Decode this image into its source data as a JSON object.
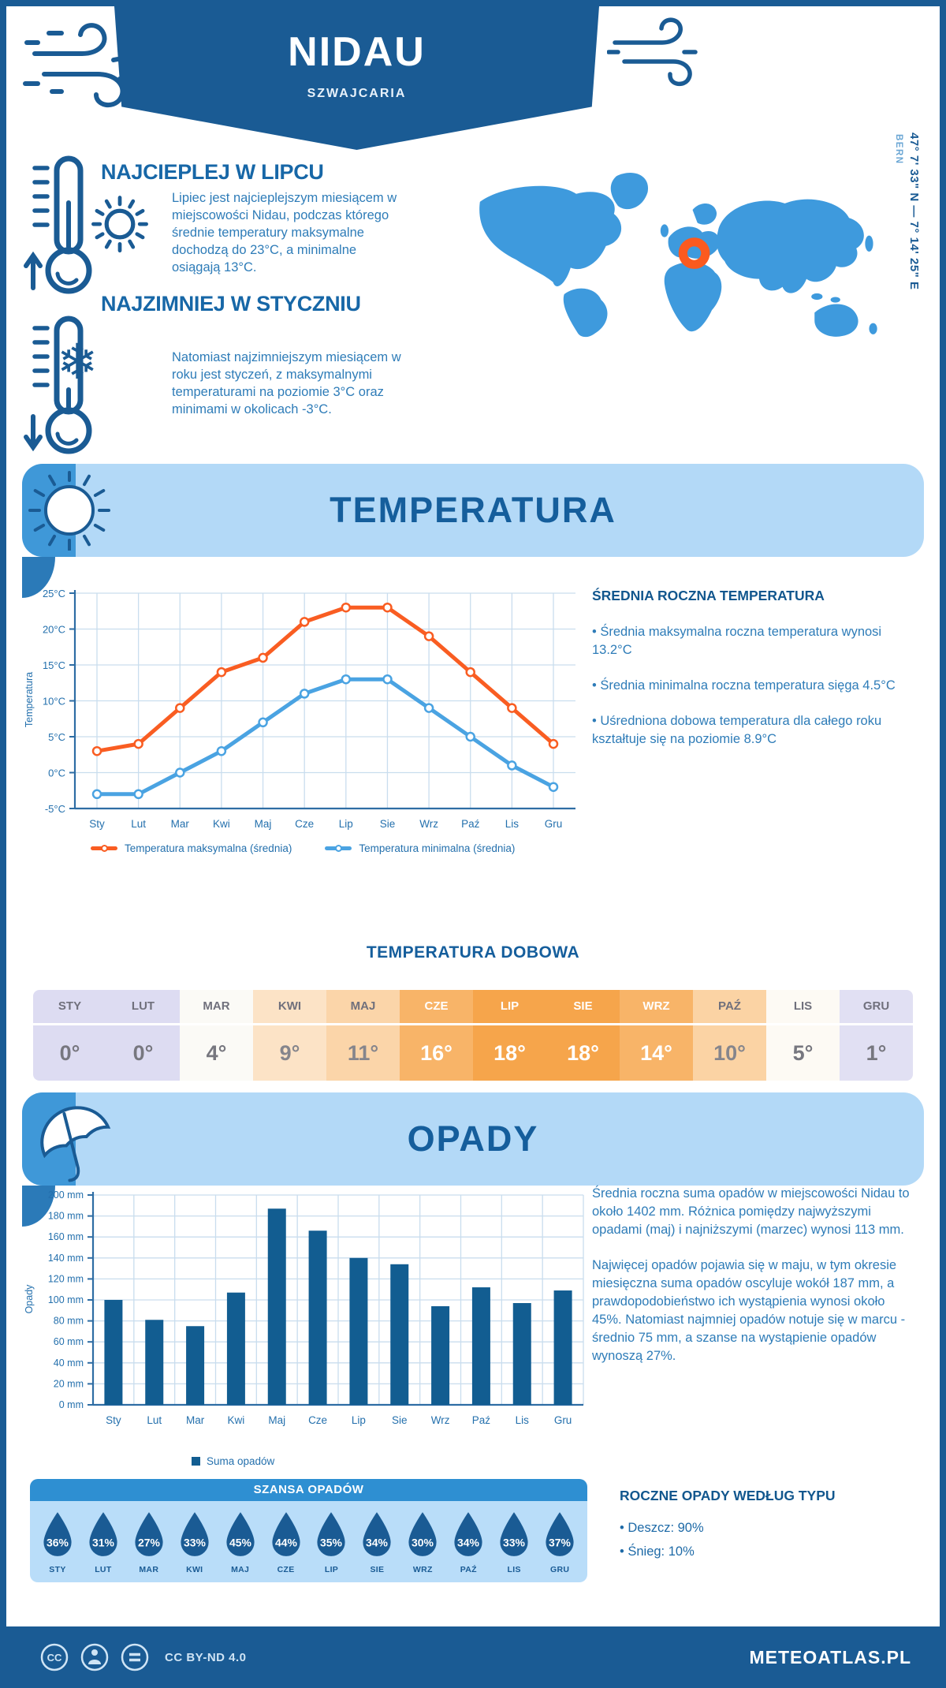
{
  "header": {
    "city": "NIDAU",
    "country": "SZWAJCARIA",
    "coordinates": "47° 7' 33\" N — 7° 14' 25\" E",
    "capital": "BERN"
  },
  "warmest": {
    "title": "NAJCIEPLEJ W LIPCU",
    "text": "Lipiec jest najcieplejszym miesiącem w miejscowości Nidau, podczas którego średnie temperatury maksymalne dochodzą do 23°C, a minimalne osiągają 13°C."
  },
  "coldest": {
    "title": "NAJZIMNIEJ W STYCZNIU",
    "text": "Natomiast najzimniejszym miesiącem w roku jest styczeń, z maksymalnymi temperaturami na poziomie 3°C oraz minimami w okolicach -3°C."
  },
  "icons": {
    "snowflake": "❄"
  },
  "colors": {
    "primary_dark": "#1a5b94",
    "accent_medium": "#3f98d8",
    "banner_light": "#b3d9f7",
    "map_blue": "#3e9add",
    "marker_orange": "#fb5a1f"
  },
  "temperature_section": {
    "title": "TEMPERATURA",
    "summary_title": "ŚREDNIA ROCZNA TEMPERATURA",
    "bullets": [
      "• Średnia maksymalna roczna temperatura wynosi 13.2°C",
      "• Średnia minimalna roczna temperatura sięga 4.5°C",
      "• Uśredniona dobowa temperatura dla całego roku kształtuje się na poziomie 8.9°C"
    ],
    "legend_max": "Temperatura maksymalna (średnia)",
    "legend_min": "Temperatura minimalna (średnia)",
    "daily_title": "TEMPERATURA DOBOWA"
  },
  "chart_data": [
    {
      "type": "line",
      "categories": [
        "Sty",
        "Lut",
        "Mar",
        "Kwi",
        "Maj",
        "Cze",
        "Lip",
        "Sie",
        "Wrz",
        "Paź",
        "Lis",
        "Gru"
      ],
      "series": [
        {
          "name": "Temperatura maksymalna (średnia)",
          "color": "#f95d22",
          "values": [
            3,
            4,
            9,
            14,
            16,
            21,
            23,
            23,
            19,
            14,
            9,
            4
          ]
        },
        {
          "name": "Temperatura minimalna (średnia)",
          "color": "#4aa3e2",
          "values": [
            -3,
            -3,
            0,
            3,
            7,
            11,
            13,
            13,
            9,
            5,
            1,
            -2
          ]
        }
      ],
      "title": "",
      "xlabel": "",
      "ylabel": "Temperatura",
      "ylim": [
        -5,
        25
      ],
      "ytick_step": 5,
      "ytick_suffix": "°C",
      "grid": true,
      "legend_position": "bottom"
    },
    {
      "type": "bar",
      "categories": [
        "Sty",
        "Lut",
        "Mar",
        "Kwi",
        "Maj",
        "Cze",
        "Lip",
        "Sie",
        "Wrz",
        "Paź",
        "Lis",
        "Gru"
      ],
      "values": [
        100,
        81,
        75,
        107,
        187,
        166,
        140,
        134,
        94,
        112,
        97,
        109
      ],
      "bar_color": "#125d91",
      "title": "",
      "xlabel": "",
      "ylabel": "Opady",
      "ylim": [
        0,
        200
      ],
      "ytick_step": 20,
      "ytick_suffix": " mm",
      "grid": true,
      "legend": "Suma opadów"
    }
  ],
  "daily_table": {
    "months": [
      "STY",
      "LUT",
      "MAR",
      "KWI",
      "MAJ",
      "CZE",
      "LIP",
      "SIE",
      "WRZ",
      "PAŹ",
      "LIS",
      "GRU"
    ],
    "values": [
      "0°",
      "0°",
      "4°",
      "9°",
      "11°",
      "16°",
      "18°",
      "18°",
      "14°",
      "10°",
      "5°",
      "1°"
    ],
    "cell_bg": [
      "#dddcf2",
      "#dddcf2",
      "#fbfaf6",
      "#fce3c6",
      "#fbd5a9",
      "#f8b468",
      "#f6a54b",
      "#f6a54b",
      "#f8b468",
      "#fbd3a4",
      "#fdfaf4",
      "#e1e0f3"
    ],
    "cell_fg": [
      "#77777f",
      "#77777f",
      "#77777f",
      "#85858c",
      "#85858c",
      "#ffffff",
      "#ffffff",
      "#ffffff",
      "#ffffff",
      "#85858c",
      "#77777f",
      "#77777f"
    ]
  },
  "precipitation_section": {
    "title": "OPADY",
    "text1": "Średnia roczna suma opadów w miejscowości Nidau to około 1402 mm. Różnica pomiędzy najwyższymi opadami (maj) i najniższymi (marzec) wynosi 113 mm.",
    "text2": "Najwięcej opadów pojawia się w maju, w tym okresie miesięczna suma opadów oscyluje wokół 187 mm, a prawdopodobieństwo ich wystąpienia wynosi około 45%. Natomiast najmniej opadów notuje się w marcu - średnio 75 mm, a szanse na wystąpienie opadów wynoszą 27%.",
    "chance_title": "SZANSA OPADÓW",
    "chances": [
      {
        "month": "STY",
        "value": "36%"
      },
      {
        "month": "LUT",
        "value": "31%"
      },
      {
        "month": "MAR",
        "value": "27%"
      },
      {
        "month": "KWI",
        "value": "33%"
      },
      {
        "month": "MAJ",
        "value": "45%"
      },
      {
        "month": "CZE",
        "value": "44%"
      },
      {
        "month": "LIP",
        "value": "35%"
      },
      {
        "month": "SIE",
        "value": "34%"
      },
      {
        "month": "WRZ",
        "value": "30%"
      },
      {
        "month": "PAŹ",
        "value": "34%"
      },
      {
        "month": "LIS",
        "value": "33%"
      },
      {
        "month": "GRU",
        "value": "37%"
      }
    ],
    "type_title": "ROCZNE OPADY WEDŁUG TYPU",
    "types": [
      "• Deszcz: 90%",
      "• Śnieg: 10%"
    ]
  },
  "footer": {
    "license": "CC BY-ND 4.0",
    "brand": "METEOATLAS.PL"
  }
}
